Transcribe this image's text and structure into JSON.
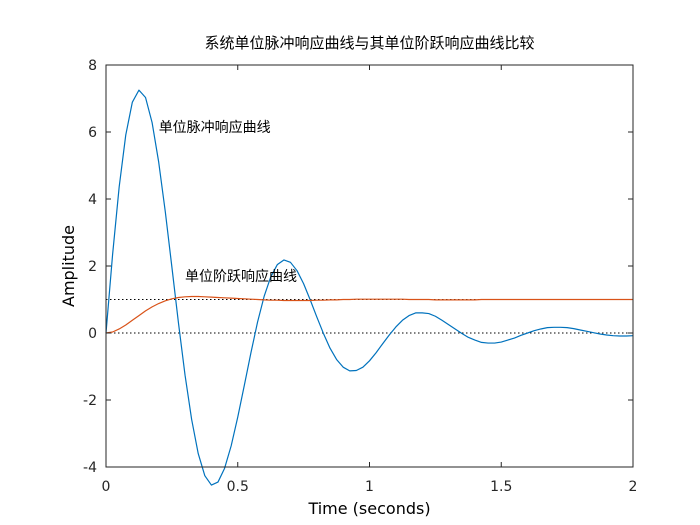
{
  "chart_data": {
    "type": "line",
    "title": "系统单位脉冲响应曲线与其单位阶跃响应曲线比较",
    "xlabel": "Time (seconds)",
    "ylabel": "Amplitude",
    "xlim": [
      0,
      2
    ],
    "ylim": [
      -4,
      8
    ],
    "xticks": [
      0,
      0.5,
      1,
      1.5,
      2
    ],
    "xtick_labels": [
      "0",
      "0.5",
      "1",
      "1.5",
      "2"
    ],
    "yticks": [
      -4,
      -2,
      0,
      2,
      4,
      6,
      8
    ],
    "ytick_labels": [
      "-4",
      "-2",
      "0",
      "2",
      "4",
      "6",
      "8"
    ],
    "grid": false,
    "reference_lines": [
      {
        "y": 1,
        "style": "dotted",
        "color": "#000000"
      },
      {
        "y": 0,
        "style": "dotted",
        "color": "#000000"
      }
    ],
    "annotations": [
      {
        "text": "单位脉冲响应曲线",
        "x": 0.2,
        "y": 6.0
      },
      {
        "text": "单位阶跃响应曲线",
        "x": 0.3,
        "y": 1.55
      }
    ],
    "series": [
      {
        "color": "#0072BD",
        "x": [
          0,
          0.025,
          0.05,
          0.075,
          0.1,
          0.125,
          0.15,
          0.175,
          0.2,
          0.225,
          0.25,
          0.275,
          0.3,
          0.325,
          0.35,
          0.375,
          0.4,
          0.425,
          0.45,
          0.475,
          0.5,
          0.525,
          0.55,
          0.575,
          0.6,
          0.625,
          0.65,
          0.675,
          0.7,
          0.725,
          0.75,
          0.775,
          0.8,
          0.825,
          0.85,
          0.875,
          0.9,
          0.925,
          0.95,
          0.975,
          1.0,
          1.025,
          1.05,
          1.075,
          1.1,
          1.125,
          1.15,
          1.175,
          1.2,
          1.225,
          1.25,
          1.275,
          1.3,
          1.325,
          1.35,
          1.375,
          1.4,
          1.425,
          1.45,
          1.475,
          1.5,
          1.525,
          1.55,
          1.575,
          1.6,
          1.625,
          1.65,
          1.675,
          1.7,
          1.725,
          1.75,
          1.775,
          1.8,
          1.825,
          1.85,
          1.875,
          1.9,
          1.925,
          1.95,
          1.975,
          2.0
        ],
        "values": [
          0.0,
          2.34,
          4.36,
          5.91,
          6.89,
          7.25,
          7.03,
          6.28,
          5.1,
          3.62,
          1.97,
          0.3,
          -1.26,
          -2.58,
          -3.6,
          -4.26,
          -4.54,
          -4.45,
          -4.04,
          -3.37,
          -2.51,
          -1.56,
          -0.59,
          0.32,
          1.09,
          1.67,
          2.04,
          2.18,
          2.11,
          1.86,
          1.47,
          0.99,
          0.48,
          -0.01,
          -0.45,
          -0.79,
          -1.02,
          -1.13,
          -1.12,
          -1.02,
          -0.83,
          -0.59,
          -0.32,
          -0.06,
          0.18,
          0.38,
          0.52,
          0.6,
          0.6,
          0.58,
          0.5,
          0.38,
          0.25,
          0.12,
          -0.01,
          -0.13,
          -0.21,
          -0.28,
          -0.3,
          -0.3,
          -0.27,
          -0.21,
          -0.15,
          -0.07,
          0.0,
          0.07,
          0.12,
          0.16,
          0.17,
          0.17,
          0.16,
          0.13,
          0.09,
          0.05,
          0.01,
          -0.03,
          -0.06,
          -0.08,
          -0.09,
          -0.09,
          -0.08
        ]
      },
      {
        "color": "#D95319",
        "x": [
          0,
          0.025,
          0.05,
          0.075,
          0.1,
          0.125,
          0.15,
          0.175,
          0.2,
          0.225,
          0.25,
          0.275,
          0.3,
          0.325,
          0.35,
          0.375,
          0.4,
          0.425,
          0.45,
          0.475,
          0.5,
          0.525,
          0.55,
          0.575,
          0.6,
          0.625,
          0.65,
          0.675,
          0.7,
          0.725,
          0.75,
          0.775,
          0.8,
          0.825,
          0.85,
          0.875,
          0.9,
          0.925,
          0.95,
          0.975,
          1.0,
          1.025,
          1.05,
          1.075,
          1.1,
          1.125,
          1.15,
          1.175,
          1.2,
          1.225,
          1.25,
          1.275,
          1.3,
          1.325,
          1.35,
          1.375,
          1.4,
          1.425,
          1.45,
          1.475,
          1.5,
          1.525,
          1.55,
          1.575,
          1.6,
          1.625,
          1.65,
          1.675,
          1.7,
          1.725,
          1.75,
          1.775,
          1.8,
          1.825,
          1.85,
          1.875,
          1.9,
          1.925,
          1.95,
          1.975,
          2.0
        ],
        "values": [
          0.0,
          0.03,
          0.12,
          0.24,
          0.38,
          0.52,
          0.66,
          0.78,
          0.88,
          0.96,
          1.02,
          1.06,
          1.08,
          1.09,
          1.09,
          1.08,
          1.07,
          1.06,
          1.05,
          1.04,
          1.03,
          1.02,
          1.01,
          1.0,
          0.99,
          0.98,
          0.98,
          0.97,
          0.97,
          0.97,
          0.97,
          0.97,
          0.98,
          0.98,
          0.99,
          0.99,
          1.0,
          1.0,
          1.01,
          1.01,
          1.01,
          1.01,
          1.01,
          1.01,
          1.01,
          1.01,
          1.0,
          1.0,
          1.0,
          1.0,
          0.99,
          0.99,
          0.99,
          0.99,
          0.99,
          0.99,
          0.99,
          1.0,
          1.0,
          1.0,
          1.0,
          1.0,
          1.0,
          1.0,
          1.0,
          1.0,
          1.0,
          1.0,
          1.0,
          1.0,
          1.0,
          1.0,
          1.0,
          1.0,
          1.0,
          1.0,
          1.0,
          1.0,
          1.0,
          1.0,
          1.0
        ]
      }
    ]
  }
}
